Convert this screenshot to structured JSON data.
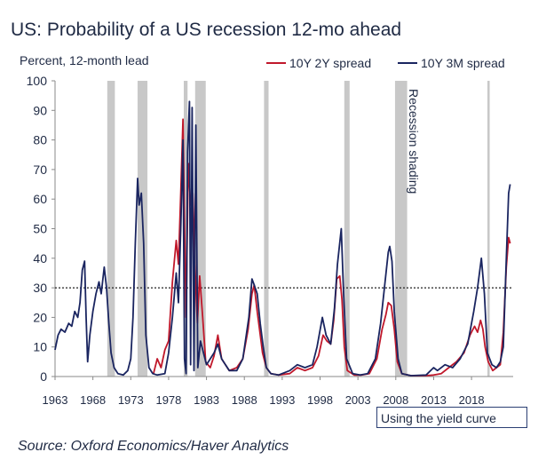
{
  "chart_data": {
    "type": "line",
    "title": "US: Probability of a US recession 12-mo ahead",
    "ylabel": "Percent, 12-month lead",
    "xlim": [
      1963,
      2023.5
    ],
    "ylim": [
      0,
      100
    ],
    "yticks": [
      0,
      10,
      20,
      30,
      40,
      50,
      60,
      70,
      80,
      90,
      100
    ],
    "xticks": [
      1963,
      1968,
      1973,
      1978,
      1983,
      1988,
      1993,
      1998,
      2003,
      2008,
      2013,
      2018
    ],
    "xtick_labels": [
      "1963",
      "1968",
      "1973",
      "1978",
      "1983",
      "1988",
      "1993",
      "1998",
      "2003",
      "2008",
      "2013",
      "2018"
    ],
    "threshold": 30,
    "recessions": [
      [
        1969.9,
        1970.9
      ],
      [
        1973.9,
        1975.2
      ],
      [
        1980.0,
        1980.5
      ],
      [
        1981.5,
        1982.9
      ],
      [
        1990.6,
        1991.2
      ],
      [
        2001.2,
        2001.9
      ],
      [
        2007.9,
        2009.5
      ],
      [
        2020.1,
        2020.4
      ]
    ],
    "recession_label": "Recession shading",
    "series": [
      {
        "name": "10Y 2Y spread",
        "color": "#c0182b",
        "points": [
          [
            1976.0,
            1
          ],
          [
            1976.5,
            6
          ],
          [
            1977.0,
            3
          ],
          [
            1977.5,
            9
          ],
          [
            1978.0,
            12
          ],
          [
            1978.5,
            32
          ],
          [
            1979.0,
            46
          ],
          [
            1979.3,
            38
          ],
          [
            1979.6,
            62
          ],
          [
            1979.9,
            87
          ],
          [
            1980.1,
            52
          ],
          [
            1980.3,
            20
          ],
          [
            1980.6,
            72
          ],
          [
            1980.9,
            58
          ],
          [
            1981.2,
            62
          ],
          [
            1981.5,
            36
          ],
          [
            1981.8,
            18
          ],
          [
            1982.1,
            34
          ],
          [
            1982.5,
            20
          ],
          [
            1982.9,
            5
          ],
          [
            1983.5,
            3
          ],
          [
            1984.0,
            7
          ],
          [
            1984.5,
            14
          ],
          [
            1985.0,
            6
          ],
          [
            1985.5,
            4
          ],
          [
            1986.0,
            2
          ],
          [
            1987.0,
            3
          ],
          [
            1987.8,
            6
          ],
          [
            1988.5,
            16
          ],
          [
            1989.0,
            28
          ],
          [
            1989.3,
            31
          ],
          [
            1989.7,
            22
          ],
          [
            1990.0,
            16
          ],
          [
            1990.4,
            8
          ],
          [
            1990.9,
            3
          ],
          [
            1991.5,
            1
          ],
          [
            1992.5,
            0.5
          ],
          [
            1994.0,
            1
          ],
          [
            1995.0,
            3
          ],
          [
            1996.0,
            2
          ],
          [
            1997.0,
            3
          ],
          [
            1997.8,
            7
          ],
          [
            1998.4,
            14
          ],
          [
            1998.9,
            12
          ],
          [
            1999.4,
            11
          ],
          [
            1999.8,
            19
          ],
          [
            2000.2,
            33
          ],
          [
            2000.6,
            34
          ],
          [
            2000.9,
            26
          ],
          [
            2001.2,
            10
          ],
          [
            2001.6,
            2
          ],
          [
            2002.5,
            0.5
          ],
          [
            2003.5,
            0.5
          ],
          [
            2004.5,
            1
          ],
          [
            2005.5,
            6
          ],
          [
            2006.2,
            16
          ],
          [
            2006.7,
            21
          ],
          [
            2007.0,
            25
          ],
          [
            2007.4,
            24
          ],
          [
            2007.8,
            16
          ],
          [
            2008.2,
            5
          ],
          [
            2008.8,
            1
          ],
          [
            2010.0,
            0.3
          ],
          [
            2012.0,
            0.3
          ],
          [
            2013.0,
            0.5
          ],
          [
            2014.0,
            1
          ],
          [
            2015.0,
            3
          ],
          [
            2016.0,
            5
          ],
          [
            2017.0,
            8
          ],
          [
            2017.8,
            14
          ],
          [
            2018.4,
            17
          ],
          [
            2018.8,
            15
          ],
          [
            2019.2,
            19
          ],
          [
            2019.5,
            16
          ],
          [
            2019.8,
            10
          ],
          [
            2020.2,
            5
          ],
          [
            2020.8,
            2
          ],
          [
            2021.3,
            3
          ],
          [
            2021.8,
            4
          ],
          [
            2022.2,
            15
          ],
          [
            2022.6,
            37
          ],
          [
            2022.9,
            47
          ],
          [
            2023.1,
            45
          ]
        ]
      },
      {
        "name": "10Y 3M spread",
        "color": "#1a2560",
        "points": [
          [
            1963.0,
            9
          ],
          [
            1963.4,
            14
          ],
          [
            1963.8,
            16
          ],
          [
            1964.3,
            15
          ],
          [
            1964.8,
            18
          ],
          [
            1965.2,
            17
          ],
          [
            1965.6,
            22
          ],
          [
            1966.0,
            20
          ],
          [
            1966.3,
            25
          ],
          [
            1966.6,
            36
          ],
          [
            1966.9,
            39
          ],
          [
            1967.1,
            20
          ],
          [
            1967.3,
            5
          ],
          [
            1967.6,
            14
          ],
          [
            1968.0,
            22
          ],
          [
            1968.4,
            28
          ],
          [
            1968.8,
            32
          ],
          [
            1969.1,
            28
          ],
          [
            1969.5,
            37
          ],
          [
            1969.8,
            30
          ],
          [
            1970.1,
            18
          ],
          [
            1970.4,
            8
          ],
          [
            1970.8,
            3
          ],
          [
            1971.3,
            1
          ],
          [
            1972.0,
            0.5
          ],
          [
            1972.6,
            2
          ],
          [
            1973.0,
            6
          ],
          [
            1973.3,
            20
          ],
          [
            1973.6,
            45
          ],
          [
            1973.9,
            67
          ],
          [
            1974.1,
            58
          ],
          [
            1974.4,
            62
          ],
          [
            1974.7,
            45
          ],
          [
            1975.0,
            14
          ],
          [
            1975.4,
            3
          ],
          [
            1975.9,
            1
          ],
          [
            1976.5,
            0.5
          ],
          [
            1977.5,
            1
          ],
          [
            1978.0,
            8
          ],
          [
            1978.5,
            20
          ],
          [
            1979.0,
            35
          ],
          [
            1979.3,
            25
          ],
          [
            1979.6,
            50
          ],
          [
            1979.9,
            80
          ],
          [
            1980.1,
            6
          ],
          [
            1980.3,
            1
          ],
          [
            1980.5,
            76
          ],
          [
            1980.75,
            93
          ],
          [
            1980.9,
            4
          ],
          [
            1981.1,
            91
          ],
          [
            1981.35,
            2
          ],
          [
            1981.6,
            85
          ],
          [
            1981.85,
            3
          ],
          [
            1982.2,
            12
          ],
          [
            1982.6,
            8
          ],
          [
            1983.0,
            4
          ],
          [
            1984.0,
            8
          ],
          [
            1984.5,
            11
          ],
          [
            1985.0,
            6
          ],
          [
            1986.0,
            2
          ],
          [
            1987.0,
            2
          ],
          [
            1987.8,
            6
          ],
          [
            1988.6,
            20
          ],
          [
            1989.0,
            33
          ],
          [
            1989.3,
            31
          ],
          [
            1989.7,
            28
          ],
          [
            1990.1,
            18
          ],
          [
            1990.5,
            10
          ],
          [
            1990.9,
            3
          ],
          [
            1991.5,
            1
          ],
          [
            1992.5,
            0.5
          ],
          [
            1994.0,
            2
          ],
          [
            1995.0,
            4
          ],
          [
            1996.0,
            3
          ],
          [
            1997.0,
            4
          ],
          [
            1997.6,
            10
          ],
          [
            1998.3,
            20
          ],
          [
            1998.8,
            14
          ],
          [
            1999.4,
            11
          ],
          [
            1999.9,
            23
          ],
          [
            2000.3,
            38
          ],
          [
            2000.8,
            50
          ],
          [
            2001.1,
            28
          ],
          [
            2001.5,
            6
          ],
          [
            2002.3,
            1
          ],
          [
            2003.3,
            0.5
          ],
          [
            2004.3,
            1
          ],
          [
            2005.3,
            6
          ],
          [
            2006.0,
            18
          ],
          [
            2006.5,
            30
          ],
          [
            2007.0,
            42
          ],
          [
            2007.2,
            44
          ],
          [
            2007.5,
            39
          ],
          [
            2007.8,
            22
          ],
          [
            2008.3,
            6
          ],
          [
            2008.8,
            1
          ],
          [
            2010.0,
            0.3
          ],
          [
            2012.0,
            0.5
          ],
          [
            2013.0,
            3
          ],
          [
            2013.5,
            2
          ],
          [
            2014.5,
            4
          ],
          [
            2015.5,
            3
          ],
          [
            2016.5,
            6
          ],
          [
            2017.5,
            11
          ],
          [
            2018.3,
            22
          ],
          [
            2018.8,
            30
          ],
          [
            2019.3,
            40
          ],
          [
            2019.7,
            28
          ],
          [
            2020.1,
            8
          ],
          [
            2020.7,
            4
          ],
          [
            2021.3,
            3
          ],
          [
            2021.8,
            5
          ],
          [
            2022.2,
            10
          ],
          [
            2022.6,
            40
          ],
          [
            2022.9,
            62
          ],
          [
            2023.1,
            65
          ]
        ]
      }
    ],
    "annotations": [
      "Recession shading",
      "Using the yield curve"
    ]
  },
  "caption": "Using the yield curve",
  "source": "Source: Oxford Economics/Haver Analytics"
}
